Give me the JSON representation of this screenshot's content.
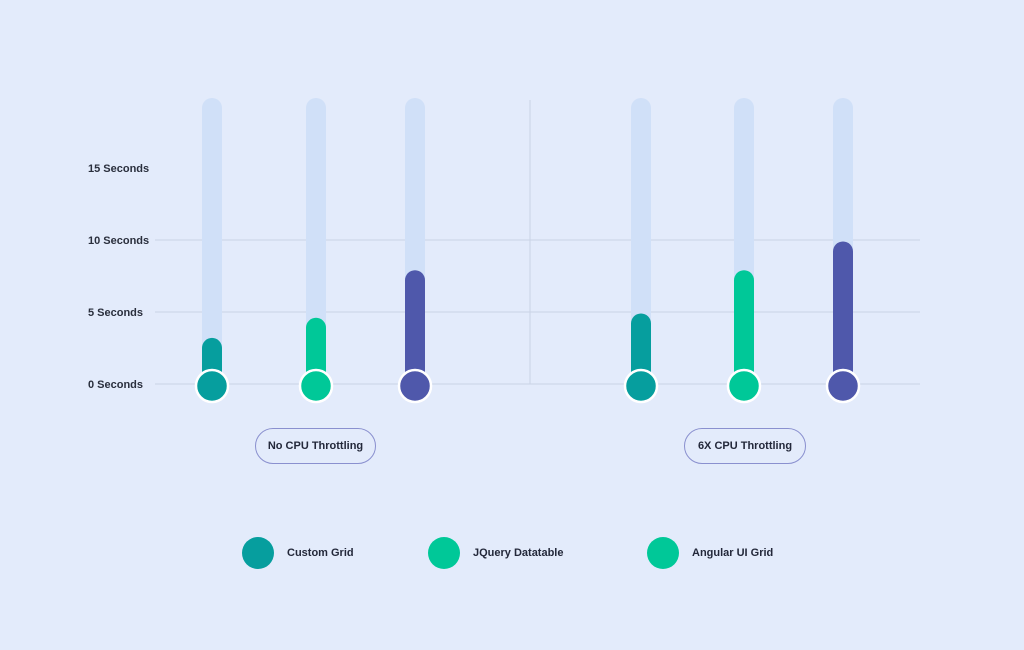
{
  "chart_data": {
    "type": "bar",
    "title": "",
    "xlabel": "",
    "ylabel": "",
    "ylim": [
      0,
      20
    ],
    "yticks": [
      {
        "value": 0,
        "label": "0 Seconds"
      },
      {
        "value": 5,
        "label": "5 Seconds"
      },
      {
        "value": 10,
        "label": "10 Seconds"
      },
      {
        "value": 15,
        "label": "15 Seconds"
      }
    ],
    "grid": true,
    "legend_position": "bottom",
    "groups": [
      "No CPU Throttling",
      "6X CPU Throttling"
    ],
    "series": [
      {
        "name": "Custom Grid",
        "color": "#069e9e",
        "values": [
          3.2,
          4.9
        ]
      },
      {
        "name": "JQuery Datatable",
        "color": "#00c898",
        "values": [
          4.6,
          7.9
        ]
      },
      {
        "name": "Angular UI Grid",
        "color": "#4f58ab",
        "values": [
          7.9,
          9.9
        ]
      }
    ],
    "legend_swatch_colors": [
      "#069e9e",
      "#00c898",
      "#00c898"
    ],
    "track_color": "#d0e0f8"
  }
}
